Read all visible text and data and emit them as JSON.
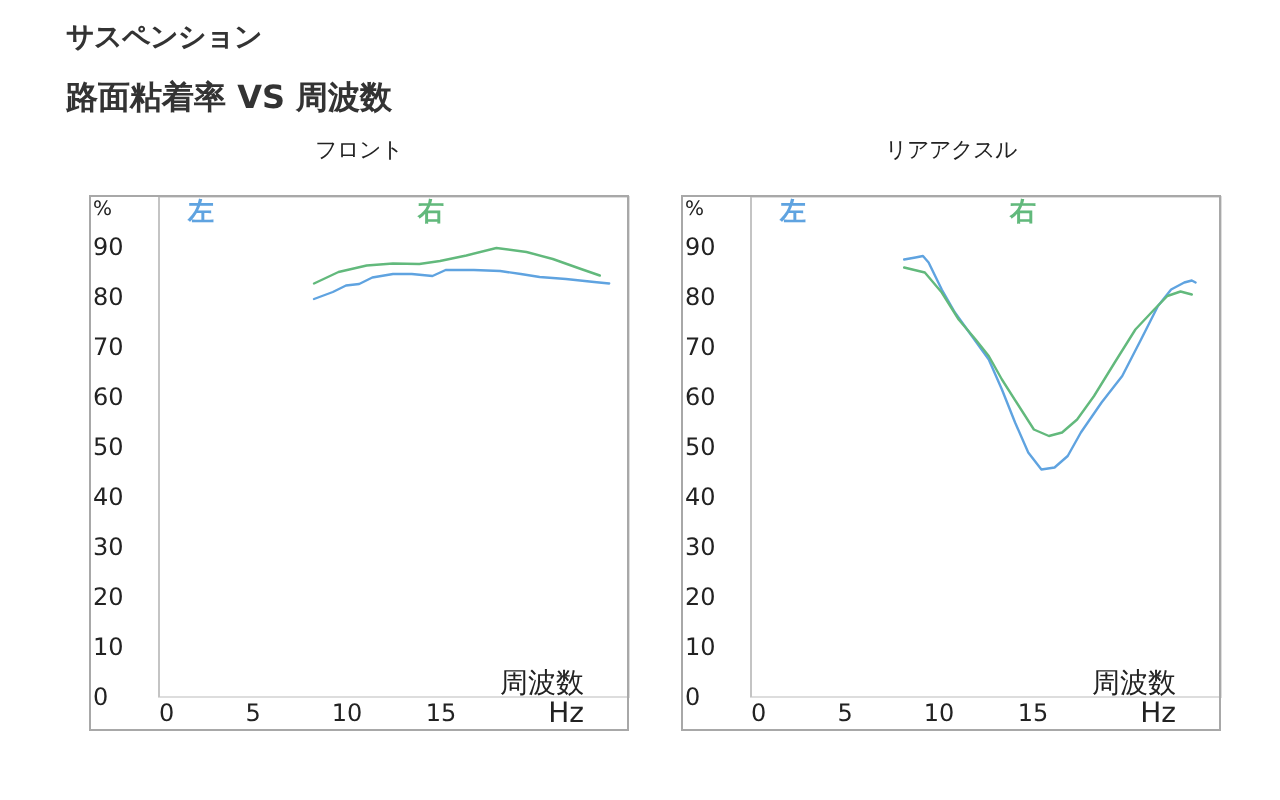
{
  "chart_data": [
    {
      "type": "line",
      "title": "フロント",
      "annotations": [
        "サスペンション",
        "路面粘着率 VS 周波数"
      ],
      "xlabel": "周波数 Hz",
      "ylabel": "%",
      "legend": "top",
      "xlim": [
        0,
        25
      ],
      "xticks": [
        0,
        5,
        10,
        15
      ],
      "ylim": [
        0,
        100
      ],
      "yticks": [
        0,
        10,
        20,
        30,
        40,
        50,
        60,
        70,
        80,
        90
      ],
      "series": [
        {
          "name": "左",
          "color": "#5fa3e0",
          "x": [
            8.3,
            9.3,
            10.0,
            10.7,
            11.4,
            12.5,
            13.5,
            14.6,
            15.3,
            16.8,
            18.2,
            19.3,
            20.3,
            21.7,
            23.2,
            24.0
          ],
          "values": [
            79.4,
            80.8,
            82.1,
            82.4,
            83.7,
            84.4,
            84.4,
            84.0,
            85.2,
            85.2,
            85.0,
            84.4,
            83.8,
            83.4,
            82.8,
            82.5
          ]
        },
        {
          "name": "右",
          "color": "#62b97c",
          "x": [
            8.3,
            9.6,
            11.1,
            12.5,
            13.9,
            15.0,
            16.4,
            18.0,
            19.6,
            21.0,
            22.5,
            23.5
          ],
          "values": [
            82.5,
            84.8,
            86.1,
            86.5,
            86.4,
            87.0,
            88.1,
            89.6,
            88.8,
            87.4,
            85.4,
            84.1
          ]
        }
      ]
    },
    {
      "type": "line",
      "title": "リアアクスル",
      "xlabel": "周波数 Hz",
      "ylabel": "%",
      "legend": "top",
      "xlim": [
        0,
        25
      ],
      "xticks": [
        0,
        5,
        10,
        15
      ],
      "ylim": [
        0,
        100
      ],
      "yticks": [
        0,
        10,
        20,
        30,
        40,
        50,
        60,
        70,
        80,
        90
      ],
      "series": [
        {
          "name": "左",
          "color": "#5fa3e0",
          "x": [
            8.2,
            8.8,
            9.2,
            9.5,
            10.2,
            10.9,
            11.8,
            12.7,
            13.4,
            14.1,
            14.8,
            15.5,
            16.2,
            16.9,
            17.6,
            18.7,
            19.8,
            20.8,
            21.7,
            22.4,
            23.1,
            23.5,
            23.7
          ],
          "values": [
            87.3,
            87.7,
            88.0,
            86.7,
            81.3,
            76.7,
            72.0,
            67.3,
            61.3,
            54.7,
            48.7,
            45.3,
            45.7,
            48.0,
            52.7,
            58.7,
            64.0,
            71.3,
            78.0,
            81.3,
            82.7,
            83.1,
            82.7
          ]
        },
        {
          "name": "右",
          "color": "#62b97c",
          "x": [
            8.2,
            9.3,
            10.2,
            11.1,
            12.0,
            12.7,
            13.4,
            14.3,
            15.1,
            15.9,
            16.6,
            17.4,
            18.3,
            19.4,
            20.5,
            21.5,
            22.2,
            22.9,
            23.5
          ],
          "values": [
            85.7,
            84.7,
            80.7,
            75.3,
            71.3,
            68.0,
            63.3,
            58.0,
            53.3,
            52.0,
            52.7,
            55.3,
            60.0,
            66.7,
            73.3,
            77.3,
            80.0,
            80.9,
            80.3
          ]
        }
      ]
    }
  ]
}
